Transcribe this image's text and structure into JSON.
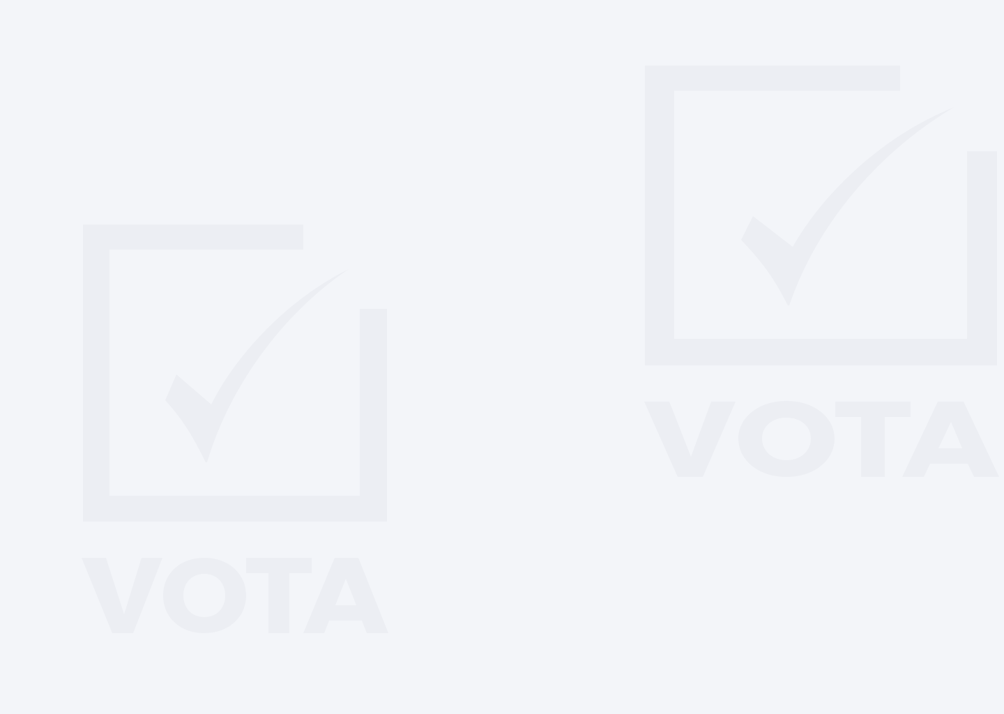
{
  "background": {
    "color": "#f3f5f9"
  },
  "watermarks": [
    {
      "brand_text": "VOTA",
      "icon": "checkbox-checkmark-icon",
      "color": "#ebedf2"
    },
    {
      "brand_text": "VOTA",
      "icon": "checkbox-checkmark-icon",
      "color": "#ebedf2"
    }
  ]
}
